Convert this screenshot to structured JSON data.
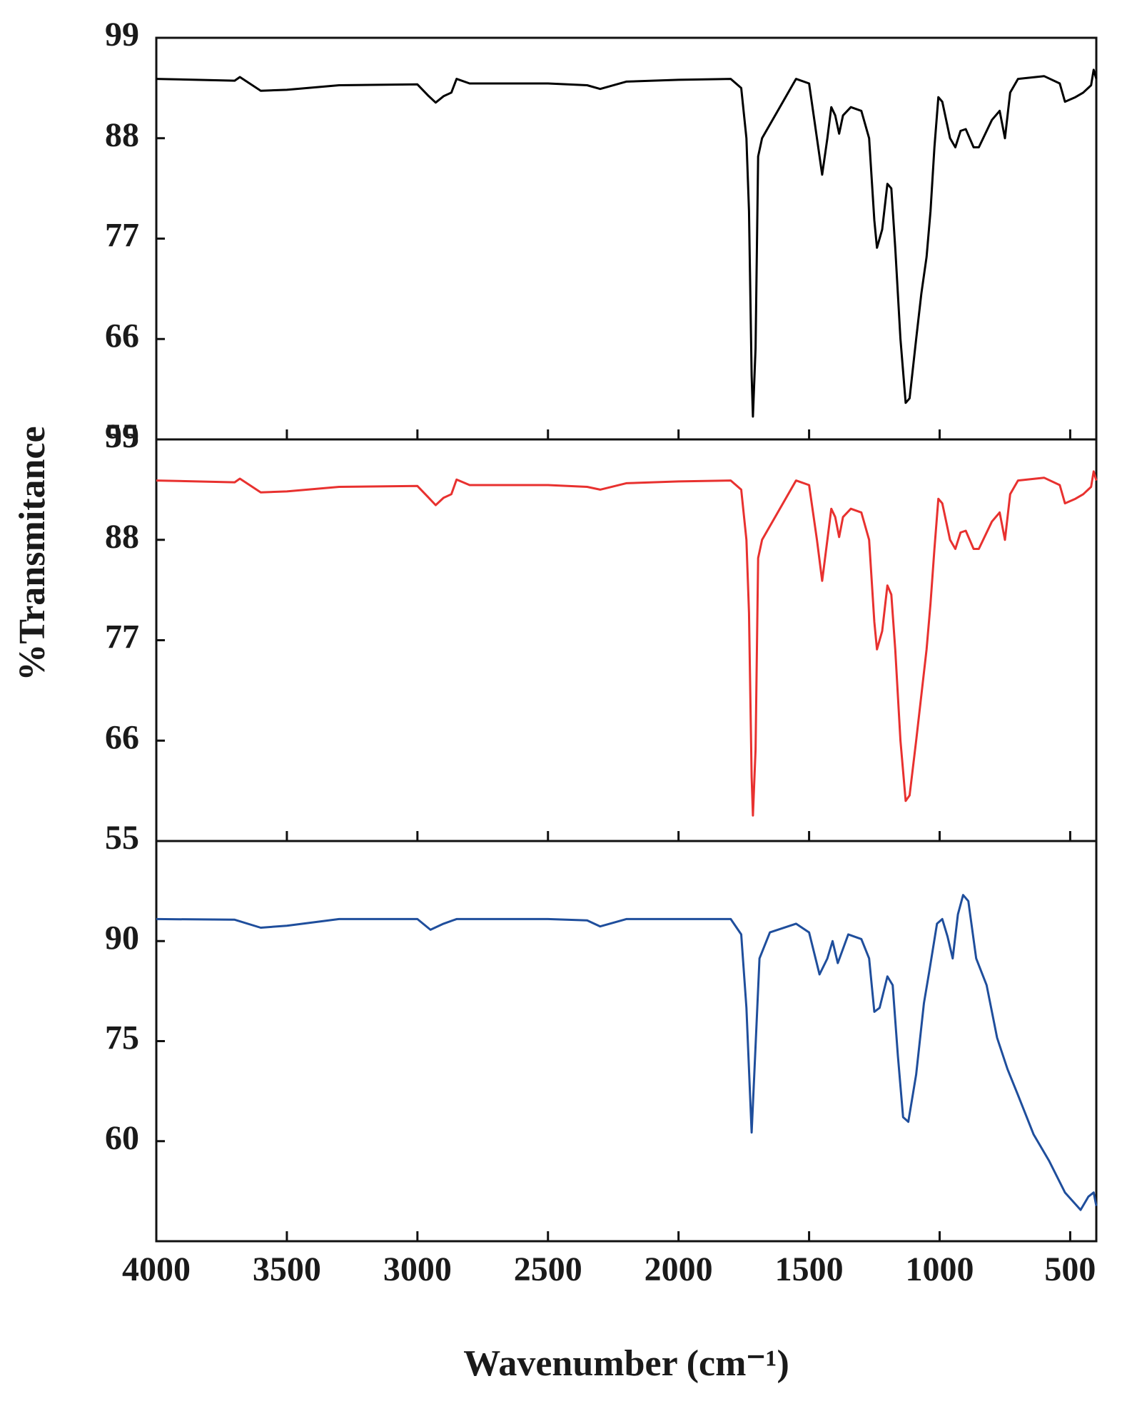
{
  "chart_data": [
    {
      "type": "line",
      "color": "#000000",
      "xlim": [
        4000,
        400
      ],
      "ylim": [
        55,
        99
      ],
      "yticks": [
        99,
        88,
        77,
        66,
        55
      ],
      "x": [
        4000,
        3700,
        3680,
        3600,
        3500,
        3300,
        3000,
        2960,
        2930,
        2900,
        2870,
        2850,
        2800,
        2500,
        2350,
        2300,
        2200,
        2000,
        1800,
        1760,
        1740,
        1730,
        1720,
        1715,
        1705,
        1695,
        1680,
        1600,
        1550,
        1500,
        1470,
        1450,
        1430,
        1415,
        1400,
        1385,
        1370,
        1340,
        1300,
        1270,
        1250,
        1240,
        1220,
        1200,
        1185,
        1170,
        1150,
        1130,
        1115,
        1090,
        1070,
        1050,
        1035,
        1020,
        1005,
        990,
        960,
        940,
        920,
        900,
        870,
        850,
        800,
        770,
        750,
        730,
        700,
        600,
        540,
        520,
        480,
        450,
        420,
        410,
        400
      ],
      "values": [
        94.5,
        94.3,
        94.7,
        93.2,
        93.3,
        93.8,
        93.9,
        92.7,
        91.9,
        92.6,
        93.0,
        94.5,
        94.0,
        94.0,
        93.8,
        93.4,
        94.2,
        94.4,
        94.5,
        93.5,
        88,
        80,
        62,
        57.5,
        65,
        86,
        88,
        92,
        94.5,
        94,
        88,
        84,
        88,
        91.4,
        90.5,
        88.5,
        90.5,
        91.4,
        91,
        88,
        79,
        76,
        78,
        83,
        82.5,
        76,
        66,
        59,
        59.5,
        66,
        71,
        75,
        80,
        87,
        92.5,
        92,
        88,
        87,
        88.8,
        89,
        87,
        87,
        90,
        91,
        88,
        93,
        94.5,
        94.8,
        94,
        92,
        92.5,
        93,
        93.8,
        95.5,
        94.5
      ]
    },
    {
      "type": "line",
      "color": "#e8312f",
      "xlim": [
        4000,
        400
      ],
      "ylim": [
        55,
        99
      ],
      "yticks": [
        99,
        88,
        77,
        66,
        55
      ],
      "ylabel": "%Transmitance",
      "x": [
        4000,
        3700,
        3680,
        3600,
        3500,
        3300,
        3000,
        2960,
        2930,
        2900,
        2870,
        2850,
        2800,
        2500,
        2350,
        2300,
        2200,
        2000,
        1800,
        1760,
        1740,
        1730,
        1720,
        1715,
        1705,
        1695,
        1680,
        1600,
        1550,
        1500,
        1470,
        1450,
        1430,
        1415,
        1400,
        1385,
        1370,
        1340,
        1300,
        1270,
        1250,
        1240,
        1220,
        1200,
        1185,
        1170,
        1150,
        1130,
        1115,
        1090,
        1070,
        1050,
        1035,
        1020,
        1005,
        990,
        960,
        940,
        920,
        900,
        870,
        850,
        800,
        770,
        750,
        730,
        700,
        600,
        540,
        520,
        480,
        450,
        420,
        410,
        400
      ],
      "values": [
        94.5,
        94.3,
        94.7,
        93.2,
        93.3,
        93.8,
        93.9,
        92.7,
        91.8,
        92.6,
        93.0,
        94.6,
        94.0,
        94.0,
        93.8,
        93.5,
        94.2,
        94.4,
        94.5,
        93.5,
        88,
        80,
        62,
        57.8,
        65,
        86,
        88,
        92,
        94.5,
        94,
        88,
        83.5,
        88,
        91.4,
        90.5,
        88.3,
        90.5,
        91.4,
        91,
        88,
        79,
        76,
        78,
        83,
        82,
        76,
        66,
        59.4,
        60,
        66,
        71,
        76,
        81,
        87,
        92.5,
        92,
        88,
        87,
        88.8,
        89,
        87,
        87,
        90,
        91,
        88,
        93,
        94.5,
        94.8,
        94,
        92,
        92.5,
        93,
        93.8,
        95.5,
        94.5
      ]
    },
    {
      "type": "line",
      "color": "#1f4e9c",
      "xlim": [
        4000,
        400
      ],
      "ylim": [
        45,
        105
      ],
      "yticks": [
        90,
        75,
        60
      ],
      "xticks": [
        4000,
        3500,
        3000,
        2500,
        2000,
        1500,
        1000,
        500
      ],
      "xlabel": "Wavenumber (cm⁻¹)",
      "x": [
        4000,
        3700,
        3600,
        3500,
        3300,
        3000,
        2950,
        2900,
        2850,
        2500,
        2350,
        2300,
        2200,
        1800,
        1760,
        1740,
        1720,
        1710,
        1690,
        1650,
        1550,
        1500,
        1460,
        1430,
        1410,
        1390,
        1350,
        1300,
        1270,
        1250,
        1230,
        1200,
        1180,
        1160,
        1140,
        1120,
        1090,
        1060,
        1040,
        1010,
        990,
        970,
        950,
        930,
        910,
        890,
        860,
        820,
        780,
        740,
        700,
        640,
        580,
        520,
        460,
        430,
        410,
        400
      ],
      "values": [
        93.3,
        93.2,
        92,
        92.3,
        93.3,
        93.3,
        91.7,
        92.6,
        93.3,
        93.3,
        93.1,
        92.2,
        93.3,
        93.3,
        91,
        80,
        61.3,
        70,
        87.4,
        91.3,
        92.6,
        91.3,
        85,
        87.4,
        90,
        86.7,
        91,
        90.3,
        87.4,
        79.4,
        80,
        84.7,
        83.4,
        72.8,
        63.6,
        62.9,
        70,
        80.7,
        85.4,
        92.6,
        93.3,
        90.7,
        87.4,
        94,
        96.9,
        96,
        87.4,
        83.4,
        75.5,
        70.8,
        66.9,
        61,
        57,
        52.3,
        49.7,
        51.7,
        52.3,
        50.3
      ]
    }
  ]
}
